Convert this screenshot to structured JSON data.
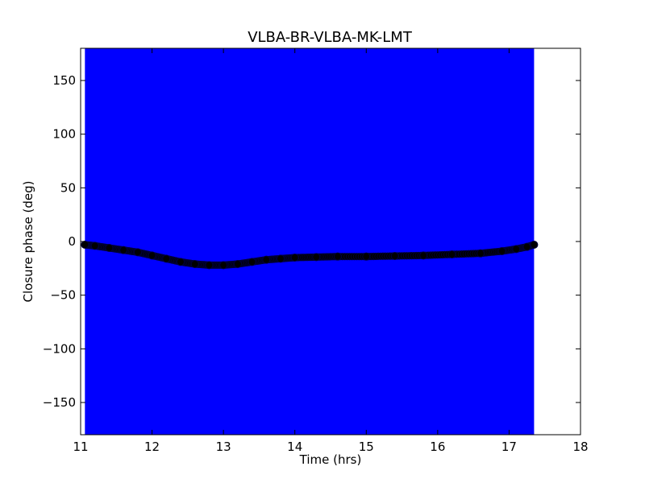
{
  "chart_data": {
    "type": "scatter",
    "title": "VLBA-BR-VLBA-MK-LMT",
    "xlabel": "Time (hrs)",
    "ylabel": "Closure phase (deg)",
    "xlim": [
      11,
      18
    ],
    "ylim": [
      -180,
      180
    ],
    "xticks": [
      11,
      12,
      13,
      14,
      15,
      16,
      17,
      18
    ],
    "xtick_labels": [
      "11",
      "12",
      "13",
      "14",
      "15",
      "16",
      "17",
      "18"
    ],
    "yticks": [
      150,
      100,
      50,
      0,
      -50,
      -100,
      -150
    ],
    "ytick_labels": [
      "150",
      "100",
      "50",
      "0",
      "−50",
      "−100",
      "−150"
    ],
    "grid": false,
    "error_band": {
      "x_range": [
        11.06,
        17.35
      ],
      "y_range": [
        -180,
        180
      ],
      "color": "#0000ff"
    },
    "series": [
      {
        "marker_color": "#000000",
        "marker_edge": "#00003a",
        "x": [
          11.06,
          11.2,
          11.4,
          11.6,
          11.8,
          12.0,
          12.2,
          12.4,
          12.6,
          12.8,
          13.0,
          13.2,
          13.4,
          13.6,
          13.8,
          14.0,
          14.3,
          14.6,
          15.0,
          15.4,
          15.8,
          16.2,
          16.6,
          16.9,
          17.1,
          17.25,
          17.35
        ],
        "y": [
          -3,
          -4,
          -6,
          -8,
          -10,
          -13,
          -16,
          -19,
          -21,
          -22,
          -22,
          -21,
          -19,
          -17,
          -16,
          -15,
          -14.5,
          -14,
          -14,
          -13.5,
          -13,
          -12,
          -11,
          -9,
          -7,
          -5,
          -3
        ]
      }
    ],
    "colors": {
      "band": "#0000ff",
      "marker": "#000000",
      "axes": "#000000"
    }
  }
}
